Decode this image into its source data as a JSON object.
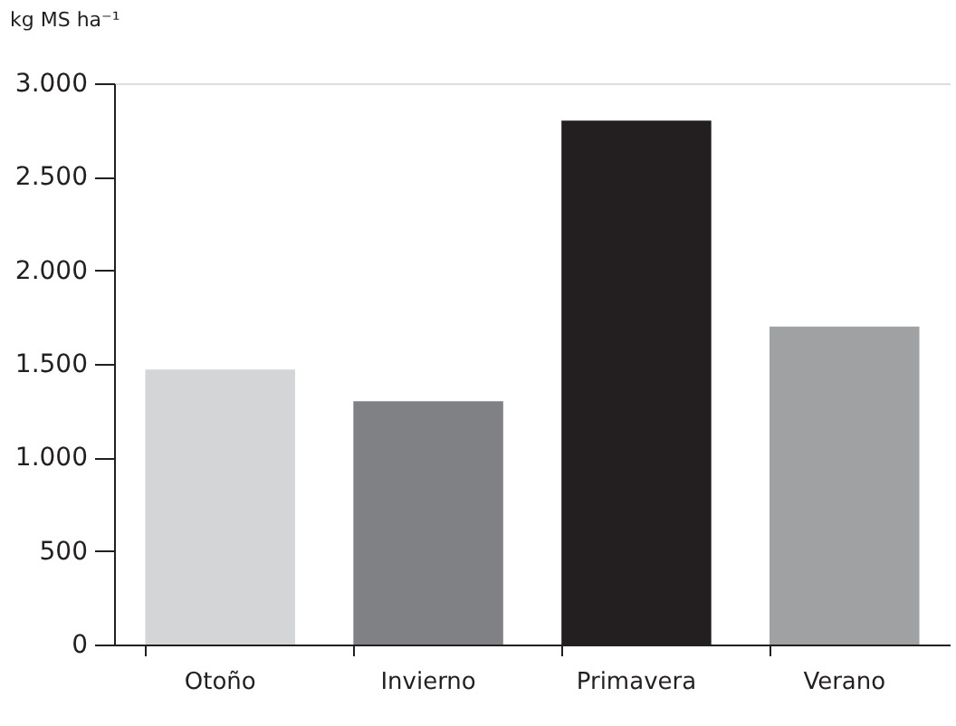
{
  "chart_data": {
    "type": "bar",
    "ylabel": "kg MS ha⁻¹",
    "categories": [
      "Otoño",
      "Invierno",
      "Primavera",
      "Verano"
    ],
    "values": [
      1470,
      1300,
      2800,
      1700
    ],
    "colors": [
      "#d4d5d7",
      "#808184",
      "#231f20",
      "#a0a1a3"
    ],
    "ylim": [
      0,
      3000
    ],
    "yticks": [
      0,
      500,
      {
        "value": 1000,
        "label": "1.000"
      },
      {
        "value": 1500,
        "label": "1.500"
      },
      {
        "value": 2000,
        "label": "2.000"
      },
      {
        "value": 2500,
        "label": "2.500"
      },
      {
        "value": 3000,
        "label": "3.000"
      }
    ],
    "grid": false
  }
}
